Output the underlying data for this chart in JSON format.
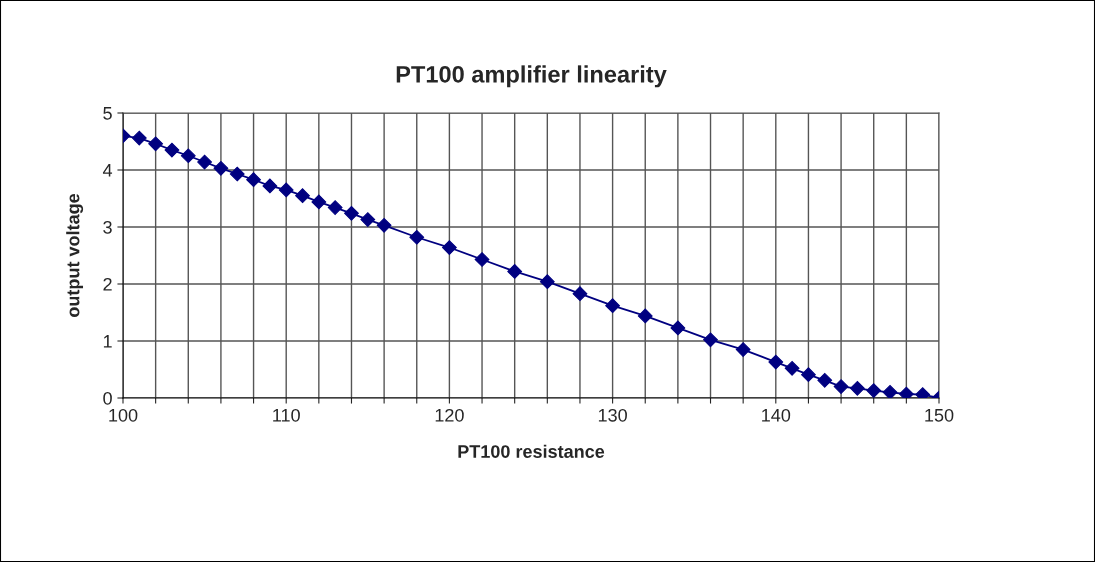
{
  "chart_data": {
    "type": "line",
    "title": "PT100 amplifier linearity",
    "xlabel": "PT100 resistance",
    "ylabel": "output voltage",
    "x": [
      100,
      101,
      102,
      103,
      104,
      105,
      106,
      107,
      108,
      109,
      110,
      111,
      112,
      113,
      114,
      115,
      116,
      118,
      120,
      122,
      124,
      126,
      128,
      130,
      132,
      134,
      136,
      138,
      140,
      141,
      142,
      143,
      144,
      145,
      146,
      147,
      148,
      149,
      150
    ],
    "series": [
      {
        "color": "#000080",
        "values": [
          4.6,
          4.56,
          4.46,
          4.35,
          4.25,
          4.14,
          4.03,
          3.93,
          3.83,
          3.72,
          3.65,
          3.55,
          3.44,
          3.34,
          3.24,
          3.13,
          3.03,
          2.82,
          2.64,
          2.43,
          2.22,
          2.04,
          1.83,
          1.62,
          1.44,
          1.23,
          1.02,
          0.85,
          0.63,
          0.52,
          0.41,
          0.31,
          0.2,
          0.17,
          0.13,
          0.1,
          0.07,
          0.06,
          0.0
        ]
      }
    ],
    "xlim": [
      100,
      150
    ],
    "ylim": [
      0,
      5
    ],
    "xticks": [
      100,
      {
        "value": 102,
        "label": null
      },
      {
        "value": 104,
        "label": null
      },
      {
        "value": 106,
        "label": null
      },
      {
        "value": 108,
        "label": null
      },
      110,
      {
        "value": 112,
        "label": null
      },
      {
        "value": 114,
        "label": null
      },
      {
        "value": 116,
        "label": null
      },
      {
        "value": 118,
        "label": null
      },
      120,
      {
        "value": 122,
        "label": null
      },
      {
        "value": 124,
        "label": null
      },
      {
        "value": 126,
        "label": null
      },
      {
        "value": 128,
        "label": null
      },
      130,
      {
        "value": 132,
        "label": null
      },
      {
        "value": 134,
        "label": null
      },
      {
        "value": 136,
        "label": null
      },
      {
        "value": 138,
        "label": null
      },
      140,
      {
        "value": 142,
        "label": null
      },
      {
        "value": 144,
        "label": null
      },
      {
        "value": 146,
        "label": null
      },
      {
        "value": 148,
        "label": null
      },
      150
    ],
    "yticks": [
      0,
      1,
      2,
      3,
      4,
      5
    ],
    "grid": true,
    "legend": false,
    "marker": "diamond",
    "line_style": "solid"
  }
}
